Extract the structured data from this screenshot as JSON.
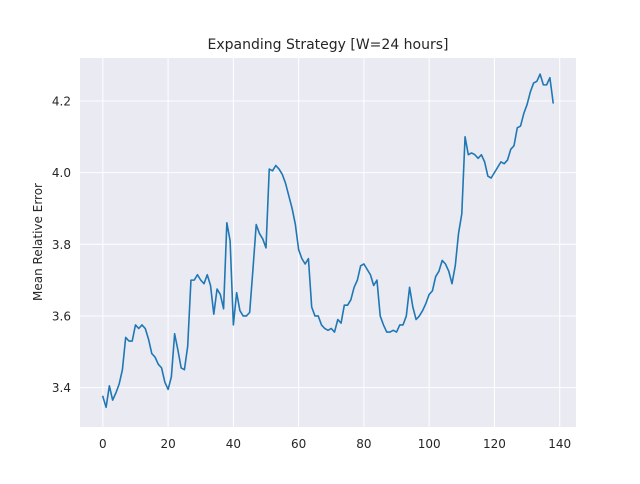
{
  "chart_data": {
    "type": "line",
    "title": "Expanding Strategy [W=24 hours]",
    "xlabel": "",
    "ylabel": "Mean Relative Error",
    "xlim": [
      -7,
      145
    ],
    "ylim": [
      3.29,
      4.32
    ],
    "xticks": [
      0,
      20,
      40,
      60,
      80,
      100,
      120,
      140
    ],
    "yticks": [
      3.4,
      3.6,
      3.8,
      4.0,
      4.2
    ],
    "xtick_labels": [
      "0",
      "20",
      "40",
      "60",
      "80",
      "100",
      "120",
      "140"
    ],
    "ytick_labels": [
      "3.4",
      "3.6",
      "3.8",
      "4.0",
      "4.2"
    ],
    "grid": true,
    "legend": false,
    "colors": {
      "background": "#ffffff",
      "axes_face": "#eaeaf2",
      "grid": "#ffffff",
      "series": "#1f77b4",
      "text": "#262626"
    },
    "series": [
      {
        "x": [
          0,
          1,
          2,
          3,
          4,
          5,
          6,
          7,
          8,
          9,
          10,
          11,
          12,
          13,
          14,
          15,
          16,
          17,
          18,
          19,
          20,
          21,
          22,
          23,
          24,
          25,
          26,
          27,
          28,
          29,
          30,
          31,
          32,
          33,
          34,
          35,
          36,
          37,
          38,
          39,
          40,
          41,
          42,
          43,
          44,
          45,
          46,
          47,
          48,
          49,
          50,
          51,
          52,
          53,
          54,
          55,
          56,
          57,
          58,
          59,
          60,
          61,
          62,
          63,
          64,
          65,
          66,
          67,
          68,
          69,
          70,
          71,
          72,
          73,
          74,
          75,
          76,
          77,
          78,
          79,
          80,
          81,
          82,
          83,
          84,
          85,
          86,
          87,
          88,
          89,
          90,
          91,
          92,
          93,
          94,
          95,
          96,
          97,
          98,
          99,
          100,
          101,
          102,
          103,
          104,
          105,
          106,
          107,
          108,
          109,
          110,
          111,
          112,
          113,
          114,
          115,
          116,
          117,
          118,
          119,
          120,
          121,
          122,
          123,
          124,
          125,
          126,
          127,
          128,
          129,
          130,
          131,
          132,
          133,
          134,
          135,
          136,
          137,
          138
        ],
        "values": [
          3.375,
          3.345,
          3.405,
          3.365,
          3.385,
          3.41,
          3.45,
          3.54,
          3.53,
          3.53,
          3.575,
          3.565,
          3.575,
          3.565,
          3.535,
          3.495,
          3.485,
          3.465,
          3.455,
          3.415,
          3.395,
          3.43,
          3.55,
          3.505,
          3.455,
          3.45,
          3.515,
          3.7,
          3.7,
          3.715,
          3.7,
          3.69,
          3.715,
          3.685,
          3.605,
          3.675,
          3.66,
          3.62,
          3.86,
          3.81,
          3.575,
          3.665,
          3.615,
          3.6,
          3.6,
          3.61,
          3.73,
          3.855,
          3.83,
          3.815,
          3.79,
          4.01,
          4.005,
          4.02,
          4.01,
          3.995,
          3.97,
          3.935,
          3.9,
          3.855,
          3.785,
          3.76,
          3.745,
          3.76,
          3.625,
          3.6,
          3.6,
          3.575,
          3.565,
          3.56,
          3.565,
          3.555,
          3.59,
          3.58,
          3.63,
          3.63,
          3.645,
          3.68,
          3.7,
          3.74,
          3.745,
          3.73,
          3.715,
          3.685,
          3.7,
          3.6,
          3.575,
          3.555,
          3.555,
          3.56,
          3.555,
          3.575,
          3.575,
          3.6,
          3.68,
          3.625,
          3.59,
          3.6,
          3.615,
          3.635,
          3.66,
          3.67,
          3.71,
          3.725,
          3.755,
          3.745,
          3.725,
          3.69,
          3.74,
          3.83,
          3.885,
          4.1,
          4.05,
          4.055,
          4.05,
          4.04,
          4.05,
          4.03,
          3.99,
          3.985,
          4.0,
          4.015,
          4.03,
          4.025,
          4.035,
          4.065,
          4.075,
          4.125,
          4.13,
          4.165,
          4.19,
          4.225,
          4.25,
          4.255,
          4.275,
          4.245,
          4.245,
          4.265,
          4.195
        ]
      }
    ]
  }
}
